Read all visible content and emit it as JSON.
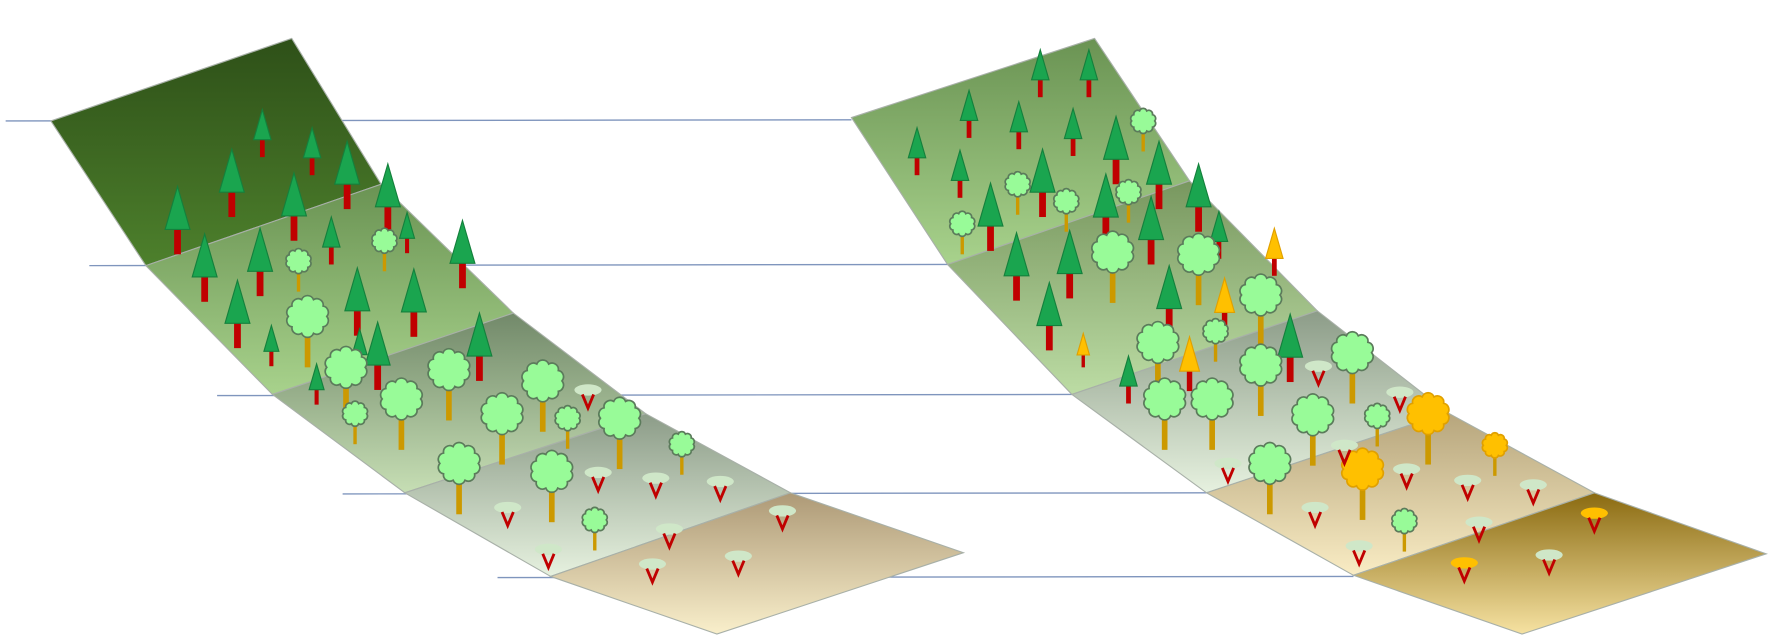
{
  "colors": {
    "conifer_crown": "#1aa54f",
    "conifer_trunk": "#c00000",
    "broadleaf_crown": "#98fb98",
    "broadleaf_trunk": "#cc9900",
    "shrub_crown": "#cfe7c8",
    "stressed": "#ffc000",
    "guide_line": "#7f95bd"
  },
  "left_slope": {
    "bands": [
      [
        "#2e5018",
        "#4d802c"
      ],
      [
        "#6a9353",
        "#a8d28c"
      ],
      [
        "#72896a",
        "#c6deb4"
      ],
      [
        "#8c9c88",
        "#e6f1df"
      ],
      [
        "#ad9976",
        "#f9efcb"
      ]
    ]
  },
  "right_slope": {
    "bands": [
      [
        "#6a9353",
        "#a8d28c"
      ],
      [
        "#78975f",
        "#bcdca4"
      ],
      [
        "#8c9c88",
        "#e6f1df"
      ],
      [
        "#b6a57c",
        "#f9ecc4"
      ],
      [
        "#8a6a10",
        "#f6e2a2"
      ]
    ]
  }
}
